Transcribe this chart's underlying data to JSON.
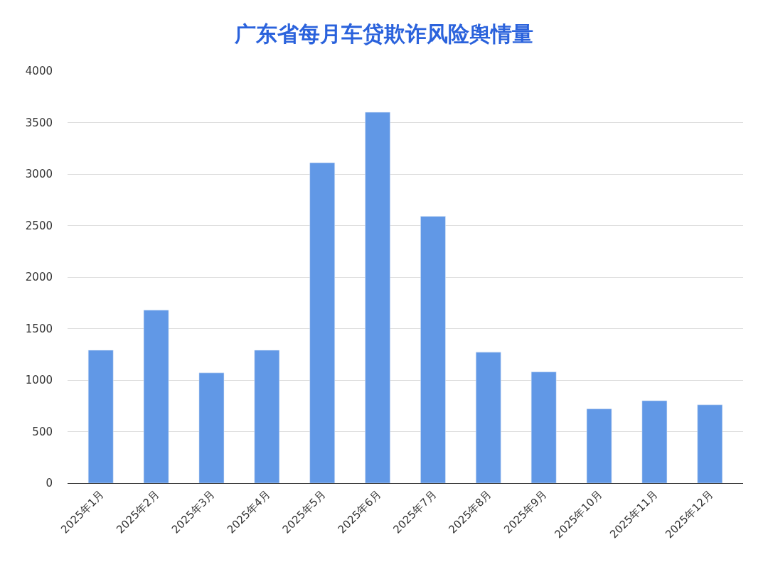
{
  "chart_data": {
    "type": "bar",
    "title": "广东省每月车贷欺诈风险舆情量",
    "categories": [
      "2025年1月",
      "2025年2月",
      "2025年3月",
      "2025年4月",
      "2025年5月",
      "2025年6月",
      "2025年7月",
      "2025年8月",
      "2025年9月",
      "2025年10月",
      "2025年11月",
      "2025年12月"
    ],
    "values": [
      1290,
      1680,
      1070,
      1290,
      3110,
      3600,
      2590,
      1270,
      1080,
      720,
      800,
      760
    ],
    "color": "#6198e6",
    "ylim": [
      0,
      4000
    ],
    "yticks": [
      0,
      500,
      1000,
      1500,
      2000,
      2500,
      3000,
      3500,
      4000
    ],
    "grid": "y",
    "legend": false
  }
}
